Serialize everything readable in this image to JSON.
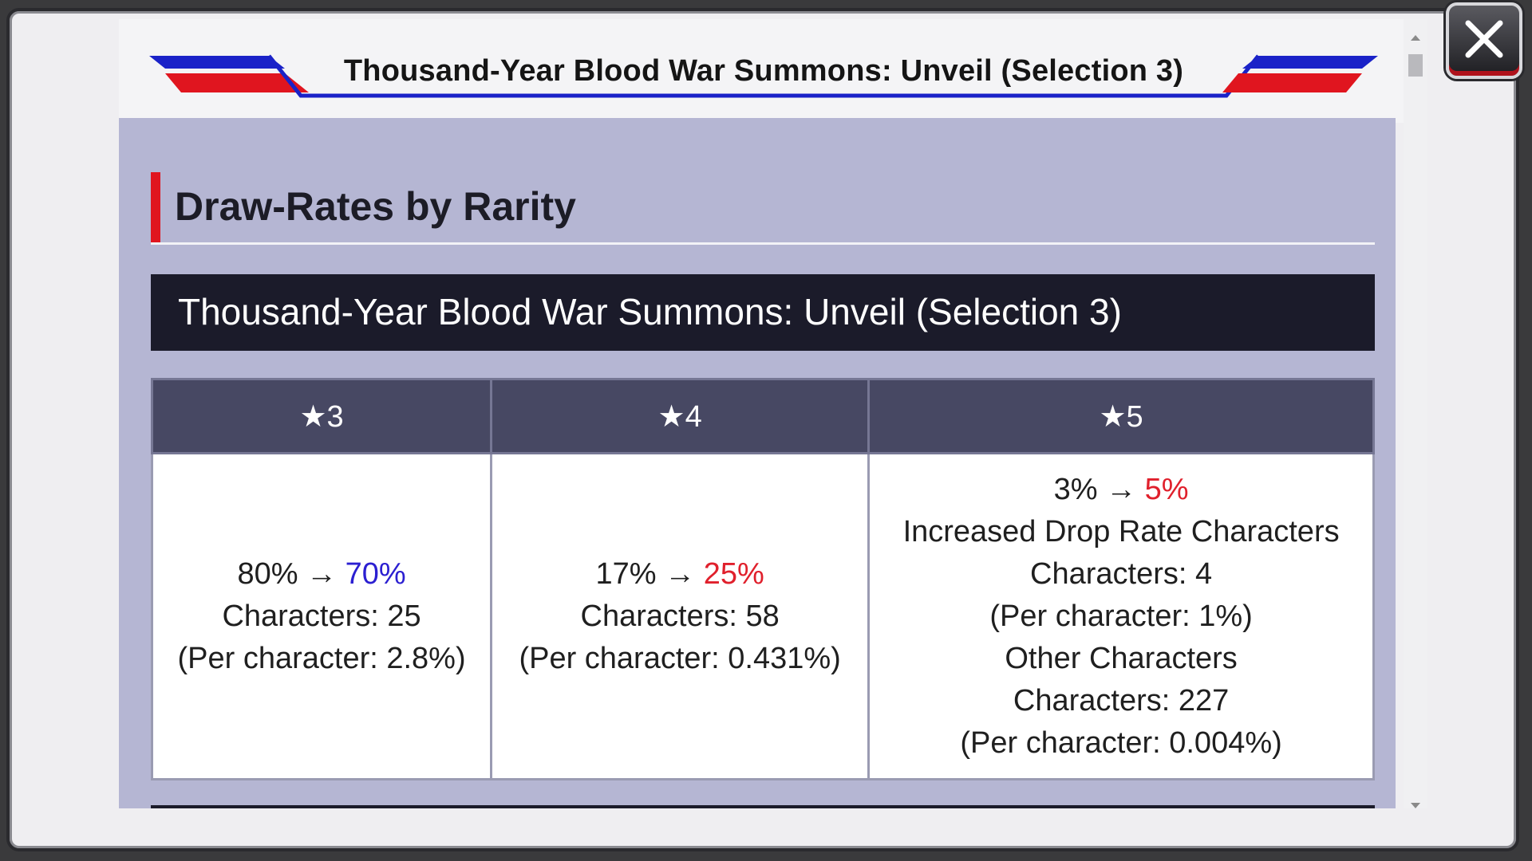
{
  "header": {
    "title": "Thousand-Year Blood War Summons: Unveil (Selection 3)"
  },
  "section": {
    "heading": "Draw-Rates by Rarity"
  },
  "summon_banner": {
    "title": "Thousand-Year Blood War Summons: Unveil (Selection 3)"
  },
  "table": {
    "headers": [
      "★3",
      "★4",
      "★5"
    ],
    "star3": {
      "old_rate": "80% →",
      "new_rate": "70%",
      "characters": "Characters: 25",
      "per_character": "(Per character: 2.8%)"
    },
    "star4": {
      "old_rate": "17% →",
      "new_rate": "25%",
      "characters": "Characters: 58",
      "per_character": "(Per character: 0.431%)"
    },
    "star5": {
      "old_rate": "3% →",
      "new_rate": "5%",
      "increased_label": "Increased Drop Rate Characters",
      "increased_characters": "Characters: 4",
      "increased_per_character": "(Per character: 1%)",
      "other_label": "Other Characters",
      "other_characters": "Characters: 227",
      "other_per_character": "(Per character: 0.004%)"
    }
  },
  "colors": {
    "rate_decrease": "#2b1fd1",
    "rate_increase": "#e0202c",
    "accent_red": "#e0151f",
    "accent_blue": "#1a22c8"
  },
  "icons": {
    "close": "close-icon",
    "scroll_up": "scroll-up-arrow-icon",
    "scroll_down": "scroll-down-arrow-icon"
  }
}
